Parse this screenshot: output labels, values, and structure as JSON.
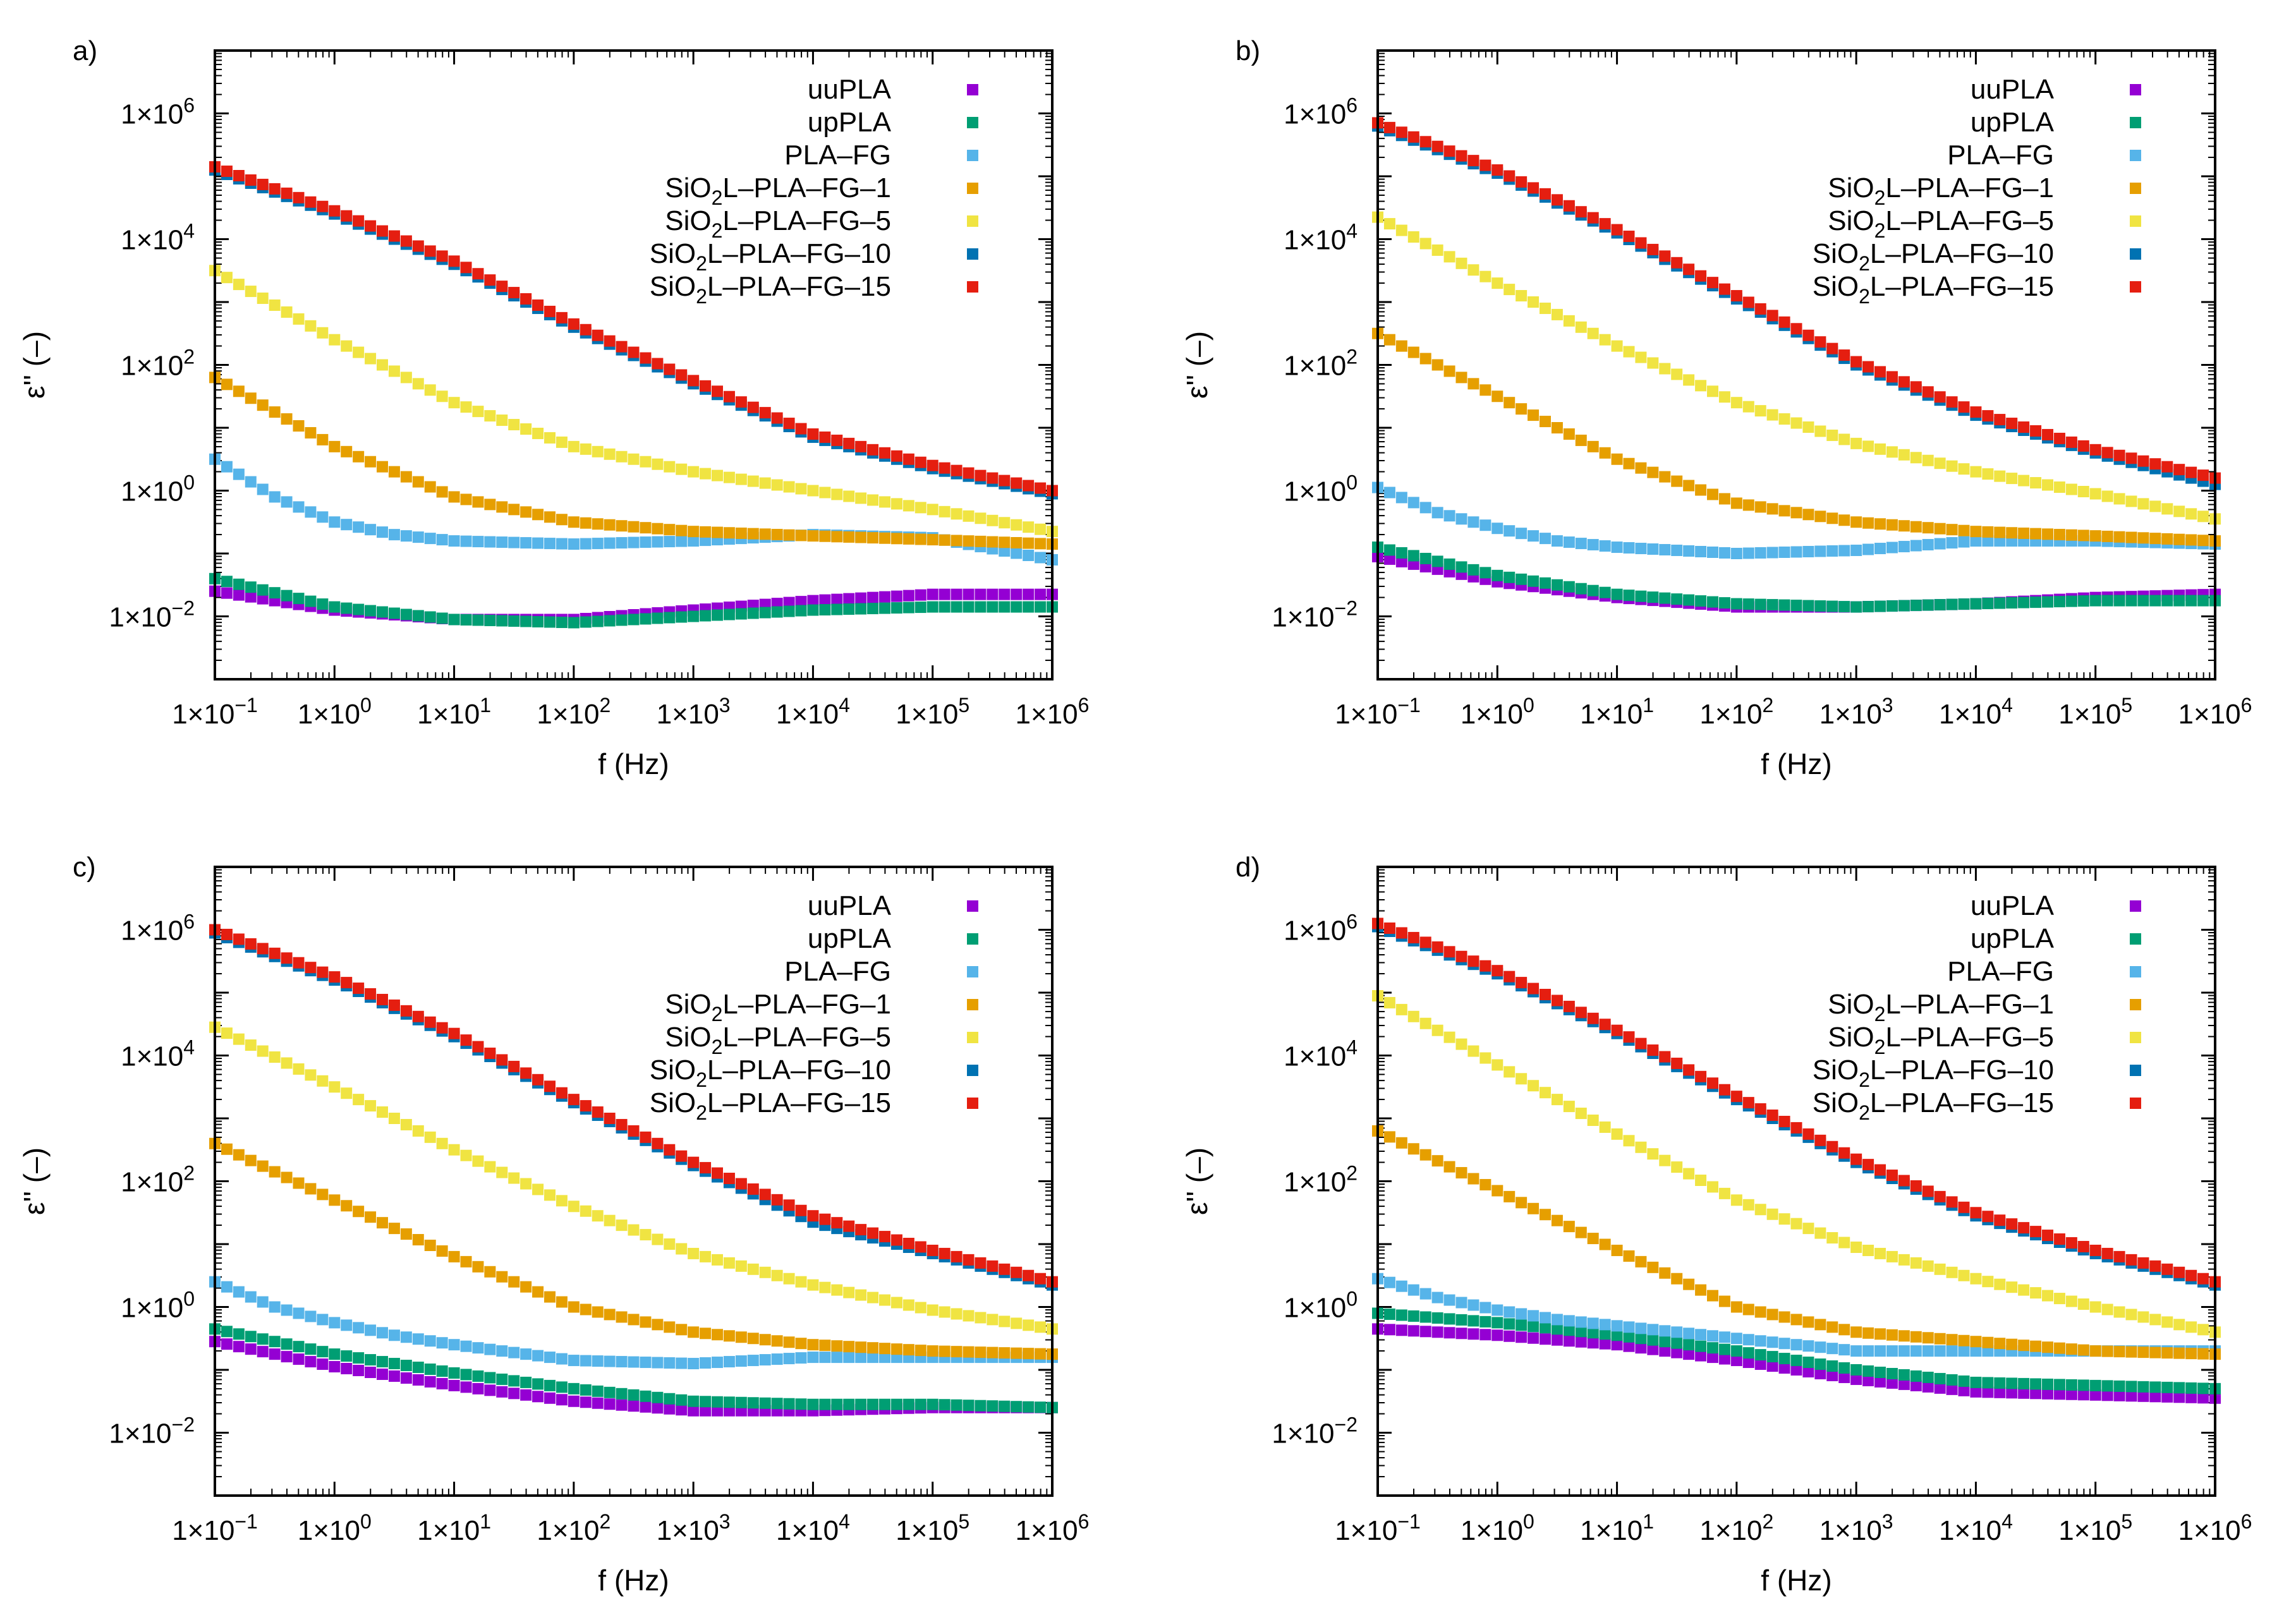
{
  "figure": {
    "legend_entries": [
      "uuPLA",
      "upPLA",
      "PLA–FG",
      "SiO2L–PLA–FG–1",
      "SiO2L–PLA–FG–5",
      "SiO2L–PLA–FG–10",
      "SiO2L–PLA–FG–15"
    ],
    "series_colors": [
      "#9400d3",
      "#009e73",
      "#56b4e9",
      "#e69f00",
      "#f0e442",
      "#0072b2",
      "#e51e10"
    ]
  },
  "chart_data": [
    {
      "type": "scatter",
      "panel_label": "a)",
      "xlabel": "f (Hz)",
      "ylabel": "ε'' (–)",
      "xscale": "log",
      "yscale": "log",
      "xlim": [
        0.1,
        1000000
      ],
      "ylim": [
        0.001,
        10000000
      ],
      "x_tick_labels": [
        {
          "m": "1×10",
          "e": "−1"
        },
        {
          "m": "1×10",
          "e": "0"
        },
        {
          "m": "1×10",
          "e": "1"
        },
        {
          "m": "1×10",
          "e": "2"
        },
        {
          "m": "1×10",
          "e": "3"
        },
        {
          "m": "1×10",
          "e": "4"
        },
        {
          "m": "1×10",
          "e": "5"
        },
        {
          "m": "1×10",
          "e": "6"
        }
      ],
      "y_tick_labels": [
        {
          "m": "1×10",
          "e": "−2"
        },
        {
          "m": "1×10",
          "e": "0"
        },
        {
          "m": "1×10",
          "e": "2"
        },
        {
          "m": "1×10",
          "e": "4"
        },
        {
          "m": "1×10",
          "e": "6"
        }
      ],
      "legend_position": "top-right",
      "series": [
        {
          "name": "uuPLA",
          "x_log10": [
            -1,
            0,
            1,
            2,
            3,
            4,
            5,
            6
          ],
          "y_log10": [
            -1.6,
            -1.9,
            -2.05,
            -2.05,
            -1.9,
            -1.75,
            -1.65,
            -1.65
          ]
        },
        {
          "name": "upPLA",
          "x_log10": [
            -1,
            0,
            1,
            2,
            3,
            4,
            5,
            6
          ],
          "y_log10": [
            -1.4,
            -1.85,
            -2.05,
            -2.1,
            -2.0,
            -1.9,
            -1.85,
            -1.85
          ]
        },
        {
          "name": "PLA–FG",
          "x_log10": [
            -1,
            -0.5,
            0,
            0.5,
            1,
            2,
            3,
            4,
            5,
            6
          ],
          "y_log10": [
            0.5,
            -0.1,
            -0.5,
            -0.7,
            -0.8,
            -0.85,
            -0.8,
            -0.7,
            -0.75,
            -1.1
          ]
        },
        {
          "name": "SiO2L–PLA–FG–1",
          "x_log10": [
            -1,
            0,
            1,
            2,
            3,
            4,
            5,
            6
          ],
          "y_log10": [
            1.8,
            0.7,
            -0.1,
            -0.5,
            -0.65,
            -0.72,
            -0.78,
            -0.85
          ]
        },
        {
          "name": "SiO2L–PLA–FG–5",
          "x_log10": [
            -1,
            0,
            1,
            2,
            3,
            4,
            5,
            6
          ],
          "y_log10": [
            3.5,
            2.4,
            1.4,
            0.7,
            0.3,
            0.0,
            -0.3,
            -0.65
          ]
        },
        {
          "name": "SiO2L–PLA–FG–10",
          "x_log10": [
            -1,
            0,
            1,
            2,
            3,
            4,
            5,
            6
          ],
          "y_log10": [
            5.1,
            4.4,
            3.6,
            2.6,
            1.7,
            0.85,
            0.35,
            -0.05
          ]
        },
        {
          "name": "SiO2L–PLA–FG–15",
          "x_log10": [
            -1,
            0,
            1,
            2,
            3,
            4,
            5,
            6
          ],
          "y_log10": [
            5.15,
            4.45,
            3.65,
            2.65,
            1.75,
            0.9,
            0.4,
            0.0
          ]
        }
      ]
    },
    {
      "type": "scatter",
      "panel_label": "b)",
      "xlabel": "f (Hz)",
      "ylabel": "ε'' (–)",
      "xscale": "log",
      "yscale": "log",
      "xlim": [
        0.1,
        1000000
      ],
      "ylim": [
        0.001,
        10000000
      ],
      "x_tick_labels": [
        {
          "m": "1×10",
          "e": "−1"
        },
        {
          "m": "1×10",
          "e": "0"
        },
        {
          "m": "1×10",
          "e": "1"
        },
        {
          "m": "1×10",
          "e": "2"
        },
        {
          "m": "1×10",
          "e": "3"
        },
        {
          "m": "1×10",
          "e": "4"
        },
        {
          "m": "1×10",
          "e": "5"
        },
        {
          "m": "1×10",
          "e": "6"
        }
      ],
      "y_tick_labels": [
        {
          "m": "1×10",
          "e": "−2"
        },
        {
          "m": "1×10",
          "e": "0"
        },
        {
          "m": "1×10",
          "e": "2"
        },
        {
          "m": "1×10",
          "e": "4"
        },
        {
          "m": "1×10",
          "e": "6"
        }
      ],
      "legend_position": "top-right",
      "series": [
        {
          "name": "uuPLA",
          "x_log10": [
            -1,
            0,
            1,
            2,
            3,
            4,
            5,
            6
          ],
          "y_log10": [
            -1.05,
            -1.45,
            -1.7,
            -1.85,
            -1.85,
            -1.8,
            -1.7,
            -1.65
          ]
        },
        {
          "name": "upPLA",
          "x_log10": [
            -1,
            0,
            1,
            2,
            3,
            4,
            5,
            6
          ],
          "y_log10": [
            -0.9,
            -1.35,
            -1.65,
            -1.8,
            -1.85,
            -1.8,
            -1.75,
            -1.75
          ]
        },
        {
          "name": "PLA–FG",
          "x_log10": [
            -1,
            -0.5,
            0,
            0.5,
            1,
            2,
            3,
            4,
            5,
            6
          ],
          "y_log10": [
            0.05,
            -0.35,
            -0.6,
            -0.8,
            -0.9,
            -1.0,
            -0.95,
            -0.8,
            -0.8,
            -0.85
          ]
        },
        {
          "name": "SiO2L–PLA–FG–1",
          "x_log10": [
            -1,
            0,
            1,
            2,
            3,
            4,
            5,
            6
          ],
          "y_log10": [
            2.5,
            1.5,
            0.5,
            -0.2,
            -0.5,
            -0.65,
            -0.72,
            -0.8
          ]
        },
        {
          "name": "SiO2L–PLA–FG–5",
          "x_log10": [
            -1,
            0,
            1,
            2,
            3,
            4,
            5,
            6
          ],
          "y_log10": [
            4.35,
            3.3,
            2.3,
            1.4,
            0.75,
            0.3,
            -0.05,
            -0.45
          ]
        },
        {
          "name": "SiO2L–PLA–FG–10",
          "x_log10": [
            -1,
            0,
            1,
            2,
            3,
            4,
            5,
            6
          ],
          "y_log10": [
            5.8,
            5.05,
            4.1,
            3.05,
            2.0,
            1.2,
            0.6,
            0.1
          ]
        },
        {
          "name": "SiO2L–PLA–FG–15",
          "x_log10": [
            -1,
            0,
            1,
            2,
            3,
            4,
            5,
            6
          ],
          "y_log10": [
            5.85,
            5.1,
            4.15,
            3.1,
            2.05,
            1.25,
            0.65,
            0.2
          ]
        }
      ]
    },
    {
      "type": "scatter",
      "panel_label": "c)",
      "xlabel": "f (Hz)",
      "ylabel": "ε'' (–)",
      "xscale": "log",
      "yscale": "log",
      "xlim": [
        0.1,
        1000000
      ],
      "ylim": [
        0.001,
        10000000
      ],
      "x_tick_labels": [
        {
          "m": "1×10",
          "e": "−1"
        },
        {
          "m": "1×10",
          "e": "0"
        },
        {
          "m": "1×10",
          "e": "1"
        },
        {
          "m": "1×10",
          "e": "2"
        },
        {
          "m": "1×10",
          "e": "3"
        },
        {
          "m": "1×10",
          "e": "4"
        },
        {
          "m": "1×10",
          "e": "5"
        },
        {
          "m": "1×10",
          "e": "6"
        }
      ],
      "y_tick_labels": [
        {
          "m": "1×10",
          "e": "−2"
        },
        {
          "m": "1×10",
          "e": "0"
        },
        {
          "m": "1×10",
          "e": "2"
        },
        {
          "m": "1×10",
          "e": "4"
        },
        {
          "m": "1×10",
          "e": "6"
        }
      ],
      "legend_position": "top-right",
      "series": [
        {
          "name": "uuPLA",
          "x_log10": [
            -1,
            0,
            1,
            2,
            3,
            4,
            5,
            6
          ],
          "y_log10": [
            -0.55,
            -0.95,
            -1.25,
            -1.5,
            -1.65,
            -1.65,
            -1.6,
            -1.6
          ]
        },
        {
          "name": "upPLA",
          "x_log10": [
            -1,
            0,
            1,
            2,
            3,
            4,
            5,
            6
          ],
          "y_log10": [
            -0.35,
            -0.75,
            -1.05,
            -1.3,
            -1.5,
            -1.55,
            -1.55,
            -1.6
          ]
        },
        {
          "name": "PLA–FG",
          "x_log10": [
            -1,
            -0.5,
            0,
            0.5,
            1,
            2,
            3,
            4,
            5,
            6
          ],
          "y_log10": [
            0.4,
            0.0,
            -0.25,
            -0.45,
            -0.6,
            -0.85,
            -0.9,
            -0.8,
            -0.8,
            -0.8
          ]
        },
        {
          "name": "SiO2L–PLA–FG–1",
          "x_log10": [
            -1,
            0,
            1,
            2,
            3,
            4,
            5,
            6
          ],
          "y_log10": [
            2.6,
            1.7,
            0.8,
            0.0,
            -0.4,
            -0.6,
            -0.7,
            -0.75
          ]
        },
        {
          "name": "SiO2L–PLA–FG–5",
          "x_log10": [
            -1,
            0,
            1,
            2,
            3,
            4,
            5,
            6
          ],
          "y_log10": [
            4.45,
            3.5,
            2.5,
            1.6,
            0.85,
            0.35,
            -0.05,
            -0.35
          ]
        },
        {
          "name": "SiO2L–PLA–FG–10",
          "x_log10": [
            -1,
            0,
            1,
            2,
            3,
            4,
            5,
            6
          ],
          "y_log10": [
            5.95,
            5.2,
            4.3,
            3.25,
            2.25,
            1.35,
            0.85,
            0.35
          ]
        },
        {
          "name": "SiO2L–PLA–FG–15",
          "x_log10": [
            -1,
            0,
            1,
            2,
            3,
            4,
            5,
            6
          ],
          "y_log10": [
            6.0,
            5.25,
            4.35,
            3.3,
            2.3,
            1.45,
            0.9,
            0.4
          ]
        }
      ]
    },
    {
      "type": "scatter",
      "panel_label": "d)",
      "xlabel": "f (Hz)",
      "ylabel": "ε'' (–)",
      "xscale": "log",
      "yscale": "log",
      "xlim": [
        0.1,
        1000000
      ],
      "ylim": [
        0.001,
        10000000
      ],
      "x_tick_labels": [
        {
          "m": "1×10",
          "e": "−1"
        },
        {
          "m": "1×10",
          "e": "0"
        },
        {
          "m": "1×10",
          "e": "1"
        },
        {
          "m": "1×10",
          "e": "2"
        },
        {
          "m": "1×10",
          "e": "3"
        },
        {
          "m": "1×10",
          "e": "4"
        },
        {
          "m": "1×10",
          "e": "5"
        },
        {
          "m": "1×10",
          "e": "6"
        }
      ],
      "y_tick_labels": [
        {
          "m": "1×10",
          "e": "−2"
        },
        {
          "m": "1×10",
          "e": "0"
        },
        {
          "m": "1×10",
          "e": "2"
        },
        {
          "m": "1×10",
          "e": "4"
        },
        {
          "m": "1×10",
          "e": "6"
        }
      ],
      "legend_position": "top-right",
      "series": [
        {
          "name": "uuPLA",
          "x_log10": [
            -1,
            0,
            1,
            2,
            3,
            4,
            5,
            6
          ],
          "y_log10": [
            -0.35,
            -0.45,
            -0.6,
            -0.85,
            -1.15,
            -1.35,
            -1.4,
            -1.45
          ]
        },
        {
          "name": "upPLA",
          "x_log10": [
            -1,
            0,
            1,
            2,
            3,
            4,
            5,
            6
          ],
          "y_log10": [
            -0.1,
            -0.25,
            -0.45,
            -0.7,
            -1.0,
            -1.2,
            -1.25,
            -1.3
          ]
        },
        {
          "name": "PLA–FG",
          "x_log10": [
            -1,
            -0.5,
            0,
            0.5,
            1,
            2,
            3,
            4,
            5,
            6
          ],
          "y_log10": [
            0.45,
            0.15,
            -0.05,
            -0.2,
            -0.3,
            -0.5,
            -0.7,
            -0.7,
            -0.7,
            -0.7
          ]
        },
        {
          "name": "SiO2L–PLA–FG–1",
          "x_log10": [
            -1,
            0,
            1,
            2,
            3,
            4,
            5,
            6
          ],
          "y_log10": [
            2.8,
            1.85,
            0.9,
            0.0,
            -0.4,
            -0.55,
            -0.7,
            -0.75
          ]
        },
        {
          "name": "SiO2L–PLA–FG–5",
          "x_log10": [
            -1,
            0,
            1,
            2,
            3,
            4,
            5,
            6
          ],
          "y_log10": [
            4.95,
            3.85,
            2.75,
            1.7,
            0.95,
            0.45,
            0.0,
            -0.4
          ]
        },
        {
          "name": "SiO2L–PLA–FG–10",
          "x_log10": [
            -1,
            0,
            1,
            2,
            3,
            4,
            5,
            6
          ],
          "y_log10": [
            6.05,
            5.3,
            4.35,
            3.3,
            2.3,
            1.45,
            0.85,
            0.35
          ]
        },
        {
          "name": "SiO2L–PLA–FG–15",
          "x_log10": [
            -1,
            0,
            1,
            2,
            3,
            4,
            5,
            6
          ],
          "y_log10": [
            6.1,
            5.35,
            4.4,
            3.35,
            2.35,
            1.5,
            0.9,
            0.4
          ]
        }
      ]
    }
  ]
}
